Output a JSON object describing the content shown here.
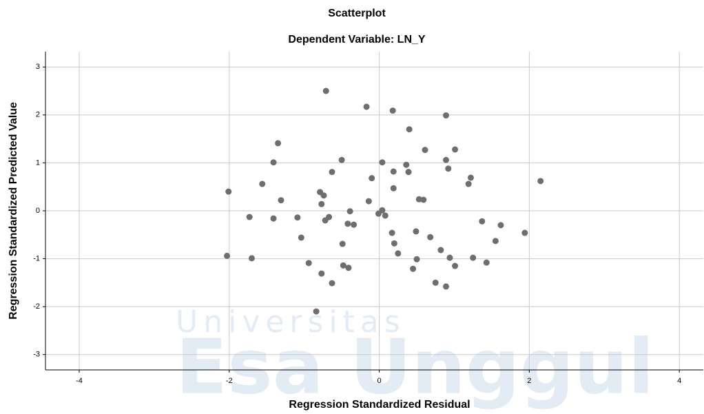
{
  "chart_data": {
    "type": "scatter",
    "title": "Scatterplot",
    "subtitle": "Dependent Variable: LN_Y",
    "x_label": "Regression Standardized Residual",
    "y_label": "Regression Standardized Predicted Value",
    "watermark": [
      "Universitas",
      "Esa Unggul"
    ],
    "color": "#6e6e6e",
    "grid": true,
    "xlim": [
      -4.45,
      4.32
    ],
    "ylim": [
      -3.32,
      3.32
    ],
    "xticks": [
      -4,
      -2,
      0,
      2,
      4
    ],
    "yticks": [
      -3,
      -2,
      -1,
      0,
      1,
      2,
      3
    ],
    "x": [
      -0.71,
      -0.17,
      0.18,
      0.89,
      0.4,
      -1.35,
      0.61,
      1.01,
      -0.5,
      0.04,
      -1.41,
      0.36,
      0.89,
      0.92,
      0.19,
      0.39,
      -0.63,
      -0.1,
      1.22,
      1.19,
      -1.56,
      0.19,
      2.15,
      -2.01,
      -0.79,
      -0.74,
      -1.31,
      -0.14,
      0.53,
      0.59,
      -0.77,
      -0.39,
      0.04,
      -0.01,
      0.08,
      -1.73,
      -1.41,
      -1.09,
      -0.67,
      -0.72,
      1.37,
      -0.42,
      -0.34,
      1.62,
      0.49,
      0.17,
      1.94,
      -1.04,
      0.68,
      1.55,
      0.2,
      -0.49,
      0.82,
      0.25,
      -2.03,
      -1.7,
      0.94,
      1.25,
      0.5,
      1.43,
      -0.94,
      -0.48,
      -0.41,
      1.01,
      0.45,
      -0.77,
      -0.63,
      0.75,
      0.89,
      -0.84
    ],
    "values": [
      2.5,
      2.17,
      2.09,
      1.99,
      1.7,
      1.41,
      1.27,
      1.28,
      1.06,
      1.01,
      1.01,
      0.96,
      1.06,
      0.88,
      0.82,
      0.81,
      0.81,
      0.68,
      0.69,
      0.56,
      0.56,
      0.47,
      0.62,
      0.4,
      0.39,
      0.32,
      0.22,
      0.2,
      0.24,
      0.23,
      0.14,
      -0.01,
      0.01,
      -0.06,
      -0.1,
      -0.13,
      -0.16,
      -0.14,
      -0.13,
      -0.2,
      -0.22,
      -0.27,
      -0.29,
      -0.3,
      -0.43,
      -0.46,
      -0.46,
      -0.56,
      -0.55,
      -0.63,
      -0.68,
      -0.69,
      -0.82,
      -0.89,
      -0.94,
      -0.99,
      -0.98,
      -0.98,
      -1.01,
      -1.08,
      -1.09,
      -1.14,
      -1.19,
      -1.15,
      -1.21,
      -1.31,
      -1.51,
      -1.5,
      -1.58,
      -2.1
    ]
  }
}
